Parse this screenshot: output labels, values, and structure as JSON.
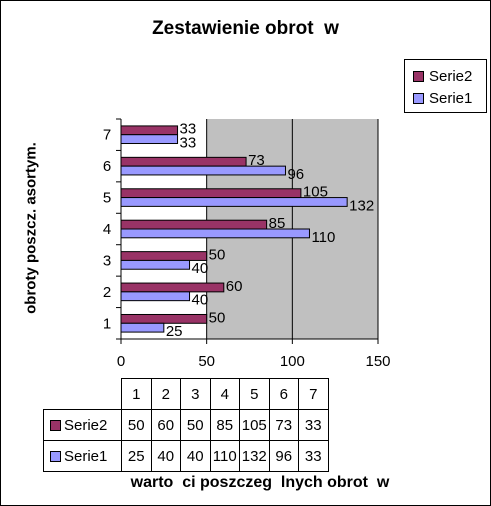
{
  "chart_data": {
    "type": "bar",
    "orientation": "horizontal",
    "title": "Zestawienie obrot  w",
    "xlabel": "warto  ci poszczeg  lnych obrot  w",
    "ylabel": "obroty poszcz. asortym.",
    "categories": [
      "1",
      "2",
      "3",
      "4",
      "5",
      "6",
      "7"
    ],
    "series": [
      {
        "name": "Serie1",
        "values": [
          25,
          40,
          40,
          110,
          132,
          96,
          33
        ],
        "color": "#9999ff"
      },
      {
        "name": "Serie2",
        "values": [
          50,
          60,
          50,
          85,
          105,
          73,
          33
        ],
        "color": "#993366"
      }
    ],
    "xlim": [
      0,
      150
    ],
    "x_ticks": [
      "0",
      "50",
      "100",
      "150"
    ],
    "grid": true,
    "plot_background": "#c0c0c0",
    "legend_position": "right",
    "legend_order": [
      "Serie2",
      "Serie1"
    ],
    "data_table": {
      "header": [
        "1",
        "2",
        "3",
        "4",
        "5",
        "6",
        "7"
      ],
      "rows": [
        {
          "name": "Serie2",
          "values": [
            "50",
            "60",
            "50",
            "85",
            "105",
            "73",
            "33"
          ]
        },
        {
          "name": "Serie1",
          "values": [
            "25",
            "40",
            "40",
            "110",
            "132",
            "96",
            "33"
          ]
        }
      ]
    }
  }
}
